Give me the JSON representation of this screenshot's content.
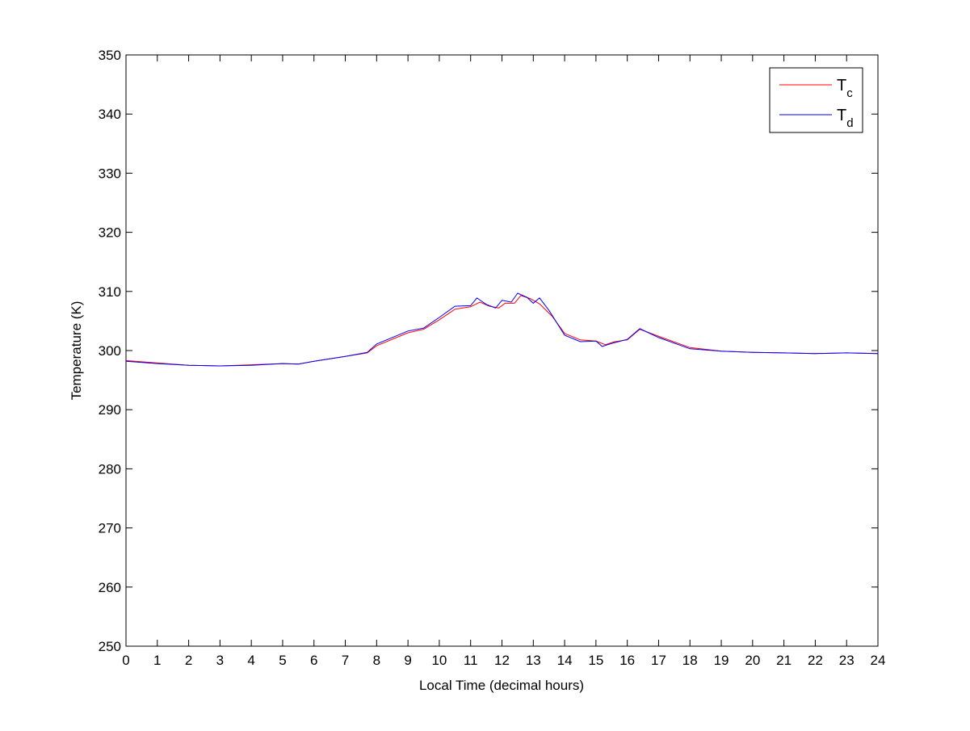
{
  "chart_data": {
    "type": "line",
    "title": "",
    "xlabel": "Local Time (decimal hours)",
    "ylabel": "Temperature (K)",
    "xlim": [
      0,
      24
    ],
    "ylim": [
      250,
      350
    ],
    "xticks": [
      0,
      1,
      2,
      3,
      4,
      5,
      6,
      7,
      8,
      9,
      10,
      11,
      12,
      13,
      14,
      15,
      16,
      17,
      18,
      19,
      20,
      21,
      22,
      23,
      24
    ],
    "yticks": [
      250,
      260,
      270,
      280,
      290,
      300,
      310,
      320,
      330,
      340,
      350
    ],
    "grid": false,
    "legend_position": "top-right",
    "series": [
      {
        "name": "T",
        "subscript": "c",
        "color": "#ff0000",
        "x": [
          0,
          1,
          2,
          3,
          4,
          5,
          5.5,
          6,
          7,
          7.7,
          8,
          9,
          9.5,
          10,
          10.5,
          11,
          11.3,
          11.6,
          11.9,
          12.1,
          12.4,
          12.6,
          12.9,
          13.2,
          13.6,
          14,
          14.5,
          15,
          15.3,
          15.6,
          16,
          16.4,
          17,
          18,
          19,
          20,
          21,
          22,
          23,
          24
        ],
        "y": [
          298.3,
          297.9,
          297.5,
          297.4,
          297.6,
          297.8,
          297.7,
          298.2,
          299.0,
          299.6,
          300.8,
          303.0,
          303.6,
          305.2,
          307.0,
          307.4,
          308.2,
          307.5,
          307.2,
          308.0,
          308.0,
          309.3,
          308.8,
          307.9,
          305.8,
          302.9,
          301.8,
          301.6,
          301.0,
          301.5,
          301.8,
          303.6,
          302.4,
          300.5,
          299.9,
          299.7,
          299.6,
          299.5,
          299.6,
          299.5
        ]
      },
      {
        "name": "T",
        "subscript": "d",
        "color": "#0000ff",
        "x": [
          0,
          1,
          2,
          3,
          4,
          5,
          5.5,
          6,
          7,
          7.7,
          8,
          9,
          9.5,
          10,
          10.5,
          11,
          11.2,
          11.5,
          11.8,
          12,
          12.3,
          12.5,
          12.8,
          13,
          13.2,
          13.5,
          14,
          14.5,
          15,
          15.2,
          15.5,
          16,
          16.4,
          17,
          18,
          19,
          20,
          21,
          22,
          23,
          24
        ],
        "y": [
          298.2,
          297.8,
          297.5,
          297.4,
          297.5,
          297.8,
          297.7,
          298.2,
          299.0,
          299.7,
          301.1,
          303.3,
          303.8,
          305.6,
          307.5,
          307.6,
          308.9,
          307.8,
          307.2,
          308.5,
          308.2,
          309.7,
          309.0,
          308.0,
          308.9,
          306.8,
          302.6,
          301.5,
          301.6,
          300.7,
          301.2,
          301.9,
          303.7,
          302.2,
          300.3,
          299.9,
          299.7,
          299.6,
          299.5,
          299.6,
          299.5
        ]
      }
    ]
  }
}
